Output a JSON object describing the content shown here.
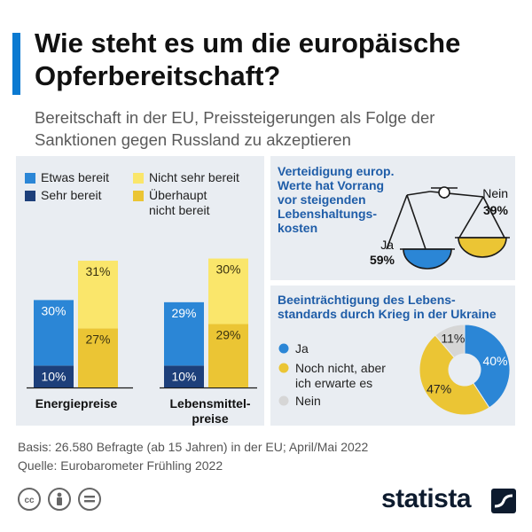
{
  "title": "Wie steht es um die europäische Opferbereitschaft?",
  "subtitle": "Bereitschaft in der EU, Preissteigerungen als Folge der Sanktionen gegen Russland zu akzeptieren",
  "legend": {
    "etwas": "Etwas bereit",
    "sehr": "Sehr bereit",
    "nicht_sehr": "Nicht sehr bereit",
    "ueberhaupt_line1": "Überhaupt",
    "ueberhaupt_line2": "nicht bereit"
  },
  "colors": {
    "sehr_bereit": "#1d3f7a",
    "etwas_bereit": "#2b86d6",
    "nicht_sehr_bereit": "#fae66b",
    "ueberhaupt_nicht_bereit": "#ebc534",
    "nein_grey": "#d6d6d6",
    "accent": "#0b7ad1",
    "panel_bg": "#e9edf2"
  },
  "chart_data": [
    {
      "type": "bar",
      "stacked": true,
      "categories": [
        "Energiepreise",
        "Lebensmittel-preise"
      ],
      "category_labels": [
        [
          "Energiepreise"
        ],
        [
          "Lebensmittel-",
          "preise"
        ]
      ],
      "series": [
        {
          "name": "Sehr bereit",
          "values": [
            10,
            10
          ],
          "labels": [
            "10%",
            "10%"
          ],
          "group": "bereit"
        },
        {
          "name": "Etwas bereit",
          "values": [
            30,
            29
          ],
          "labels": [
            "30%",
            "29%"
          ],
          "group": "bereit"
        },
        {
          "name": "Überhaupt nicht bereit",
          "values": [
            27,
            29
          ],
          "labels": [
            "27%",
            "29%"
          ],
          "group": "nicht"
        },
        {
          "name": "Nicht sehr bereit",
          "values": [
            31,
            30
          ],
          "labels": [
            "31%",
            "30%"
          ],
          "group": "nicht"
        }
      ],
      "ylim": [
        0,
        60
      ],
      "grid": false,
      "legend_position": "top"
    },
    {
      "type": "scale",
      "title_lines": [
        "Verteidigung europ.",
        "Werte hat Vorrang",
        "vor steigenden",
        "Lebenshaltungs-",
        "kosten"
      ],
      "categories": [
        "Ja",
        "Nein"
      ],
      "values": [
        59,
        39
      ],
      "value_labels": [
        "59%",
        "39%"
      ]
    },
    {
      "type": "pie",
      "title_lines": [
        "Beeinträchtigung des Lebens-",
        "standards durch Krieg in der Ukraine"
      ],
      "categories": [
        "Ja",
        "Noch nicht, aber ich erwarte es",
        "Nein"
      ],
      "legend_lines": [
        [
          "Ja"
        ],
        [
          "Noch nicht, aber",
          "ich erwarte es"
        ],
        [
          "Nein"
        ]
      ],
      "values": [
        40,
        47,
        11
      ],
      "value_labels": [
        "40%",
        "47%",
        "11%"
      ],
      "donut": true
    }
  ],
  "footer": {
    "basis": "Basis: 26.580 Befragte (ab 15 Jahren) in der EU; April/Mai 2022",
    "quelle": "Quelle: Eurobarometer Frühling 2022",
    "license_icons": [
      "cc-icon",
      "by-icon",
      "nd-icon"
    ]
  },
  "brand": {
    "name": "statista"
  }
}
